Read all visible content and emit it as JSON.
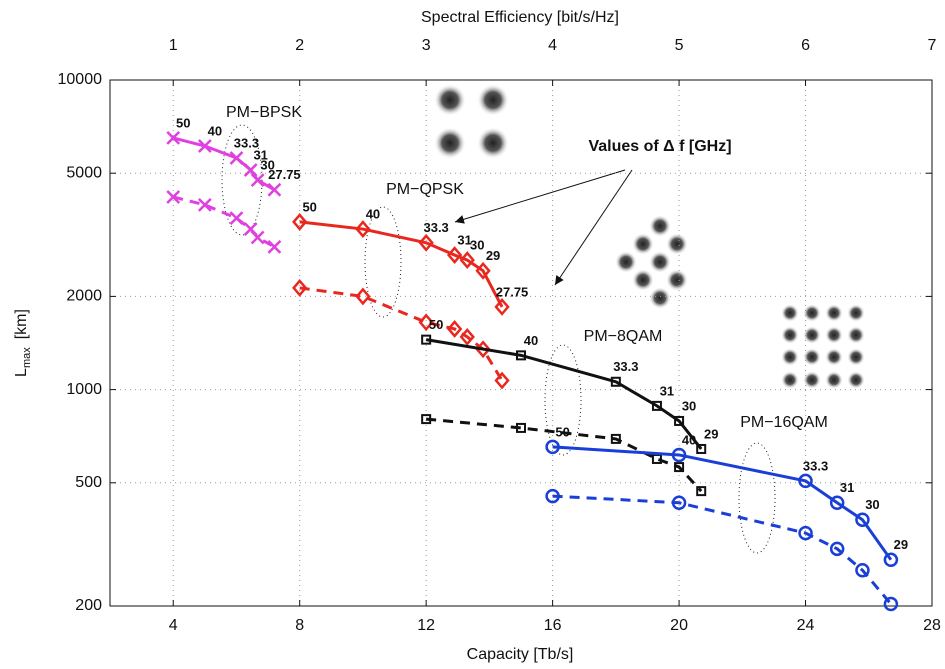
{
  "chart_data": {
    "type": "line",
    "x_label": "Capacity  [Tb/s]",
    "x2_label": "Spectral Efficiency [bit/s/Hz]",
    "y_label": {
      "main": "L",
      "sub": "max",
      "unit": "[km]"
    },
    "xlim": [
      2,
      28
    ],
    "xticks": [
      4,
      8,
      12,
      16,
      20,
      24,
      28
    ],
    "x2lim": [
      0.5,
      7
    ],
    "x2ticks": [
      1,
      2,
      3,
      4,
      5,
      6,
      7
    ],
    "ylim": [
      200,
      10000
    ],
    "yticks": [
      200,
      500,
      1000,
      2000,
      5000,
      10000
    ],
    "log_y": true,
    "grid": true,
    "annotations": [
      "PM−BPSK",
      "PM−QPSK",
      "PM−8QAM",
      "PM−16QAM",
      "Values of Δ f [GHz]"
    ],
    "series": [
      {
        "color": "#e040e0",
        "marker": "x",
        "dashed": false,
        "x": [
          4,
          5,
          6,
          6.45,
          6.67,
          7.2
        ],
        "values": [
          6500,
          6120,
          5600,
          5120,
          4750,
          4420
        ],
        "labels": [
          50,
          40,
          33.3,
          31,
          30,
          27.75
        ]
      },
      {
        "color": "#e040e0",
        "marker": "x",
        "dashed": true,
        "x": [
          4,
          5,
          6,
          6.45,
          6.67,
          7.2
        ],
        "values": [
          4190,
          3950,
          3580,
          3300,
          3100,
          2890
        ]
      },
      {
        "color": "#e8281e",
        "marker": "diamond",
        "dashed": false,
        "x": [
          8,
          10,
          12,
          12.9,
          13.3,
          13.8,
          14.4
        ],
        "values": [
          3480,
          3300,
          2980,
          2720,
          2620,
          2420,
          1850
        ],
        "labels": [
          50,
          40,
          33.3,
          31,
          30,
          29,
          27.75
        ]
      },
      {
        "color": "#e8281e",
        "marker": "diamond",
        "dashed": true,
        "x": [
          8,
          10,
          12,
          12.9,
          13.3,
          13.8,
          14.4
        ],
        "values": [
          2130,
          2000,
          1650,
          1570,
          1480,
          1350,
          1070
        ]
      },
      {
        "color": "#111111",
        "marker": "square",
        "dashed": false,
        "x": [
          12,
          15,
          18,
          19.3,
          20,
          20.7
        ],
        "values": [
          1450,
          1290,
          1060,
          886,
          792,
          643
        ],
        "labels": [
          50,
          40,
          33.3,
          31,
          30,
          29
        ]
      },
      {
        "color": "#111111",
        "marker": "square",
        "dashed": true,
        "x": [
          12,
          15,
          18,
          19.3,
          20,
          20.7
        ],
        "values": [
          803,
          752,
          693,
          597,
          562,
          470
        ]
      },
      {
        "color": "#1a3fd6",
        "marker": "circle",
        "dashed": false,
        "x": [
          16,
          20,
          24,
          25,
          25.8,
          26.7
        ],
        "values": [
          653,
          615,
          507,
          431,
          380,
          282
        ],
        "labels": [
          50,
          40,
          33.3,
          31,
          30,
          29
        ]
      },
      {
        "color": "#1a3fd6",
        "marker": "circle",
        "dashed": true,
        "x": [
          16,
          20,
          24,
          25,
          25.8,
          26.7
        ],
        "values": [
          453,
          431,
          344,
          306,
          261,
          203
        ]
      }
    ]
  }
}
